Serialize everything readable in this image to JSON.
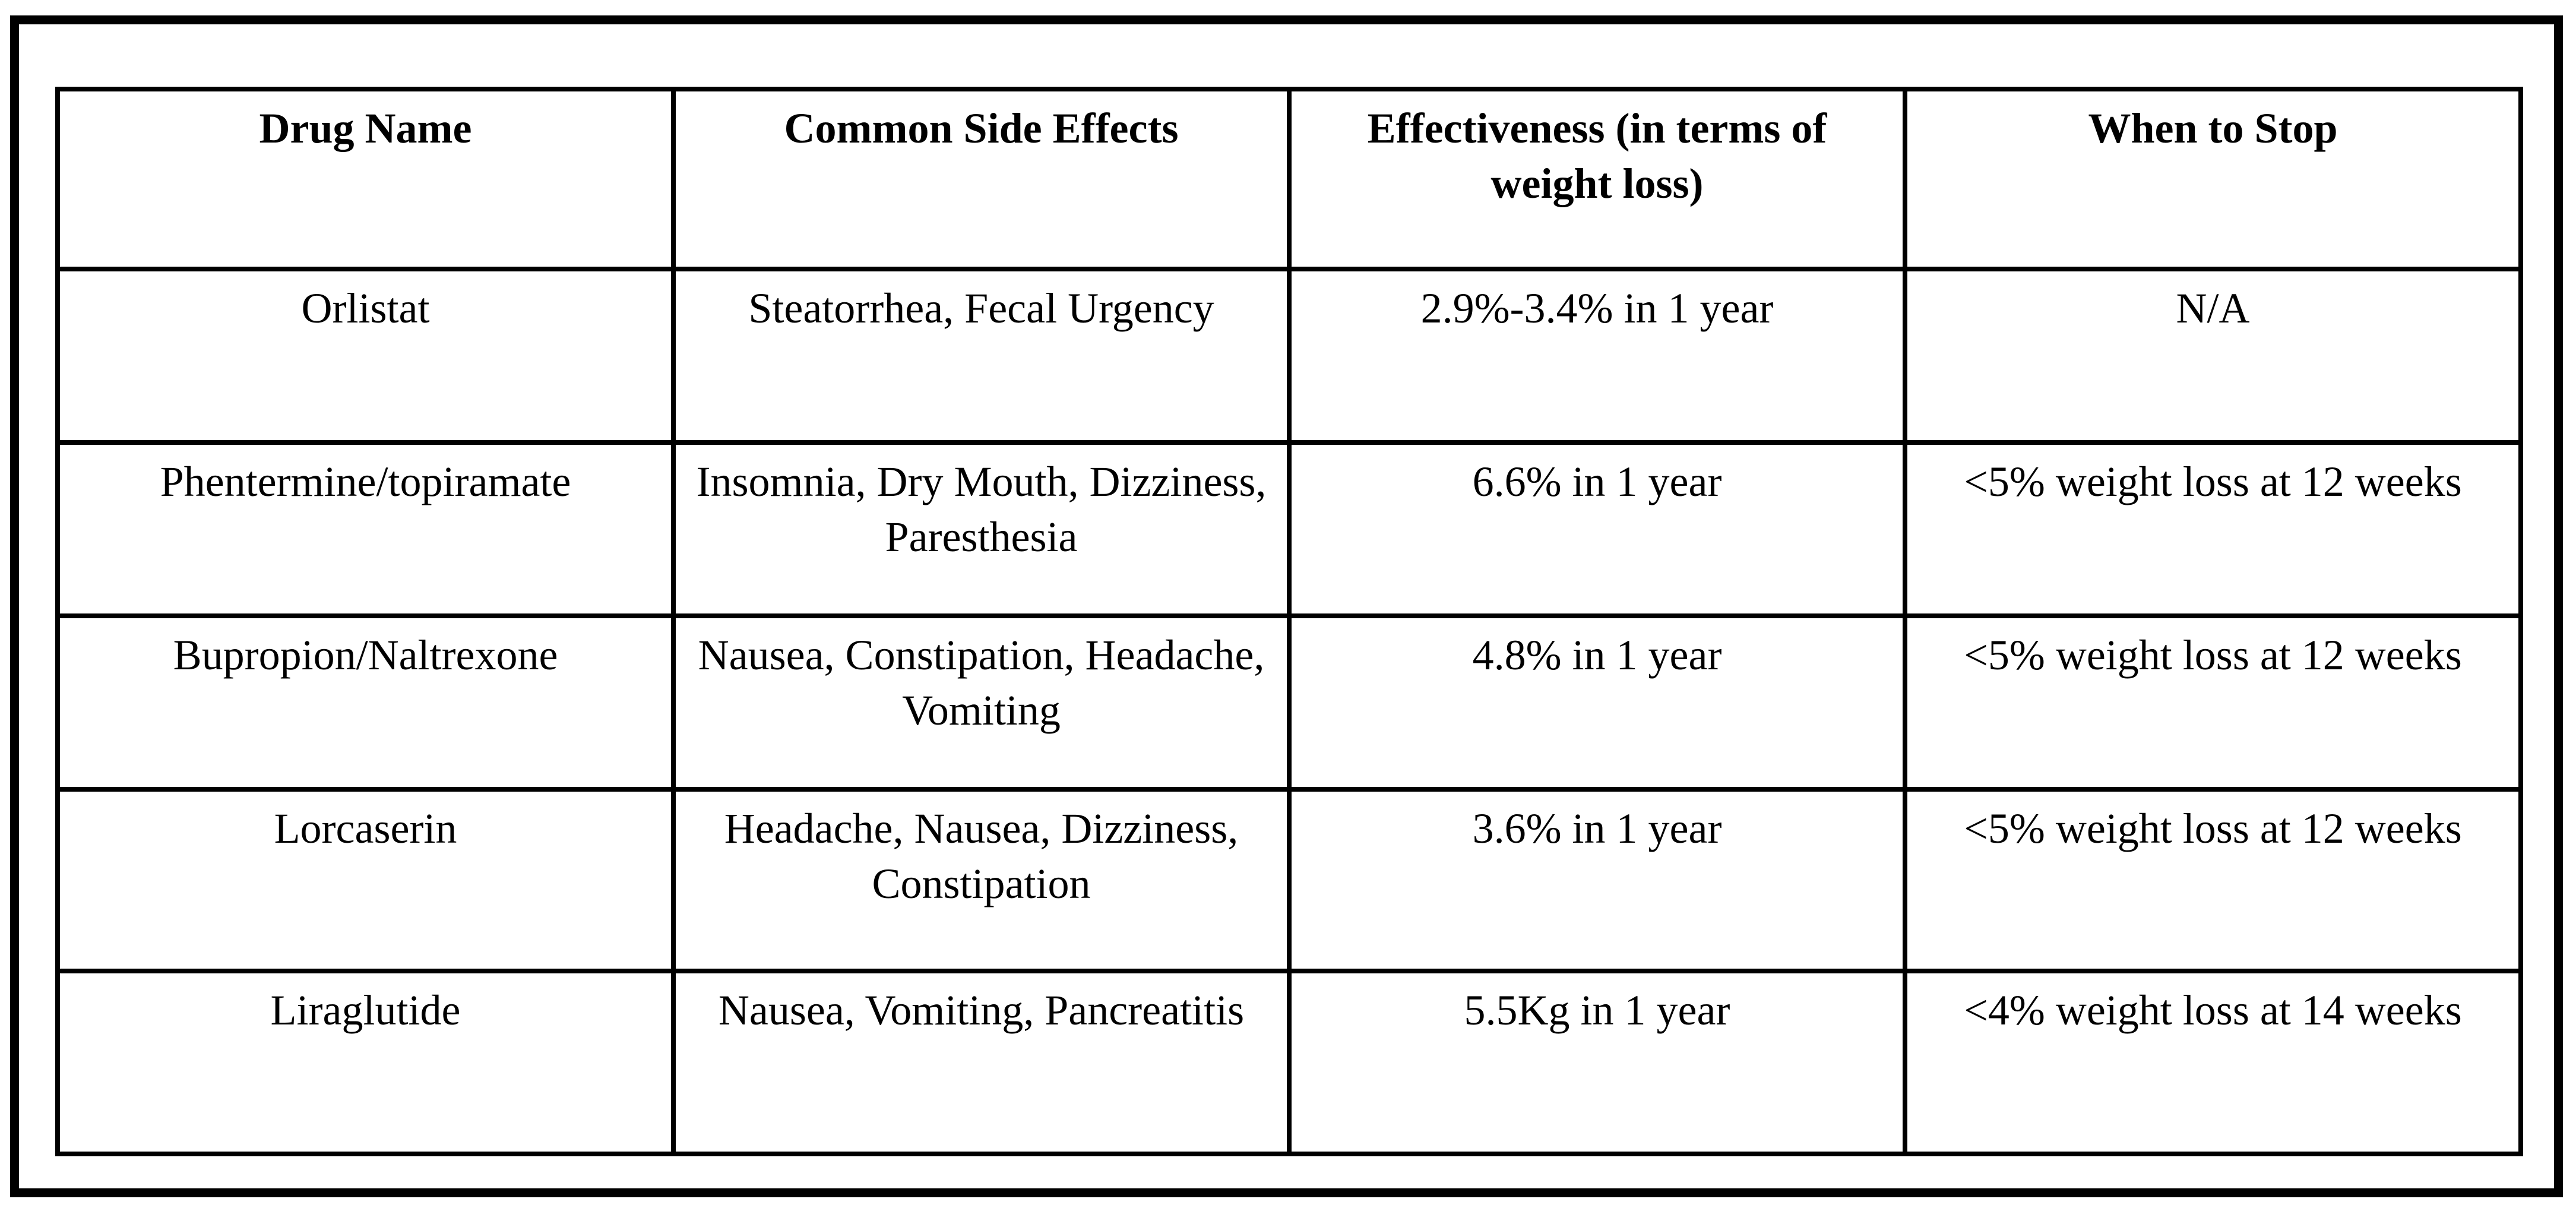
{
  "page": {
    "background_color": "#ffffff",
    "frame_color": "#000000",
    "text_color": "#000000"
  },
  "table": {
    "headers": {
      "drug_name": "Drug Name",
      "side_effects": "Common Side Effects",
      "effectiveness": "Effectiveness (in terms of weight loss)",
      "when_to_stop": "When to Stop"
    },
    "rows": [
      {
        "drug_name": "Orlistat",
        "side_effects": "Steatorrhea, Fecal Urgency",
        "effectiveness": "2.9%-3.4% in 1 year",
        "when_to_stop": "N/A"
      },
      {
        "drug_name": "Phentermine/topiramate",
        "side_effects": "Insomnia, Dry Mouth, Dizziness, Paresthesia",
        "effectiveness": "6.6% in 1 year",
        "when_to_stop": "<5% weight loss at 12 weeks"
      },
      {
        "drug_name": "Bupropion/Naltrexone",
        "side_effects": "Nausea, Constipation, Headache, Vomiting",
        "effectiveness": "4.8% in 1 year",
        "when_to_stop": "<5% weight loss at 12 weeks"
      },
      {
        "drug_name": "Lorcaserin",
        "side_effects": "Headache, Nausea, Dizziness, Constipation",
        "effectiveness": "3.6% in 1 year",
        "when_to_stop": "<5% weight loss at 12 weeks"
      },
      {
        "drug_name": "Liraglutide",
        "side_effects": "Nausea, Vomiting, Pancreatitis",
        "effectiveness": "5.5Kg in 1 year",
        "when_to_stop": "<4% weight loss at 14 weeks"
      }
    ]
  }
}
